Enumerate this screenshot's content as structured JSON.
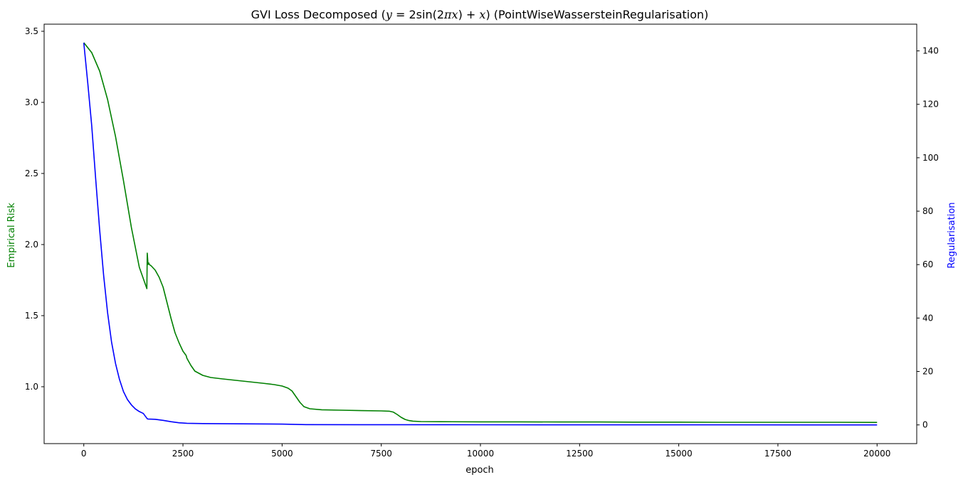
{
  "chart_data": {
    "type": "line",
    "title": "GVI Loss Decomposed ($y=2\\sin(2\\pi x)+x$) (PointWiseWassersteinRegularisation)",
    "title_rendered": {
      "prefix": "GVI Loss Decomposed (",
      "math_y": "y",
      "math_eq": " = 2sin(2",
      "math_pi": "π",
      "math_x1": "x",
      "math_close": ") + ",
      "math_x2": "x",
      "suffix": ") (PointWiseWassersteinRegularisation)"
    },
    "xlabel": "epoch",
    "ylabel_left": "Empirical Risk",
    "ylabel_right": "Regularisation",
    "xlim": [
      -1000,
      21000
    ],
    "ylim_left": [
      0.6,
      3.55
    ],
    "ylim_right": [
      -7,
      150
    ],
    "x_ticks": [
      0,
      2500,
      5000,
      7500,
      10000,
      12500,
      15000,
      17500,
      20000
    ],
    "x_tick_labels": [
      "0",
      "2500",
      "5000",
      "7500",
      "10000",
      "12500",
      "15000",
      "17500",
      "20000"
    ],
    "y_left_ticks": [
      1.0,
      1.5,
      2.0,
      2.5,
      3.0,
      3.5
    ],
    "y_left_tick_labels": [
      "1.0",
      "1.5",
      "2.0",
      "2.5",
      "3.0",
      "3.5"
    ],
    "y_right_ticks": [
      0,
      20,
      40,
      60,
      80,
      100,
      120,
      140
    ],
    "y_right_tick_labels": [
      "0",
      "20",
      "40",
      "60",
      "80",
      "100",
      "120",
      "140"
    ],
    "grid": false,
    "legend": "none",
    "series": [
      {
        "axis": "left",
        "color": "#008000",
        "x": [
          0,
          200,
          400,
          600,
          800,
          1000,
          1200,
          1400,
          1590,
          1600,
          1620,
          1640,
          1650,
          1700,
          1800,
          1900,
          2000,
          2100,
          2200,
          2300,
          2400,
          2500,
          2580,
          2600,
          2700,
          2800,
          3000,
          3200,
          3500,
          4000,
          4500,
          4800,
          5000,
          5150,
          5250,
          5350,
          5450,
          5550,
          5700,
          6000,
          6500,
          7000,
          7500,
          7700,
          7800,
          7900,
          8000,
          8100,
          8200,
          8300,
          8500,
          9000,
          10000,
          11000,
          12000,
          13000,
          14000,
          15000,
          16000,
          17000,
          18000,
          19000,
          20000
        ],
        "values": [
          3.42,
          3.35,
          3.22,
          3.02,
          2.76,
          2.45,
          2.12,
          1.84,
          1.69,
          1.94,
          1.86,
          1.87,
          1.86,
          1.85,
          1.82,
          1.77,
          1.7,
          1.59,
          1.48,
          1.38,
          1.31,
          1.25,
          1.22,
          1.2,
          1.15,
          1.11,
          1.08,
          1.065,
          1.055,
          1.04,
          1.025,
          1.015,
          1.005,
          0.99,
          0.97,
          0.93,
          0.89,
          0.86,
          0.845,
          0.838,
          0.835,
          0.832,
          0.83,
          0.828,
          0.822,
          0.805,
          0.785,
          0.77,
          0.762,
          0.758,
          0.755,
          0.754,
          0.753,
          0.753,
          0.752,
          0.752,
          0.751,
          0.751,
          0.75,
          0.75,
          0.75,
          0.75,
          0.749
        ]
      },
      {
        "axis": "right",
        "color": "#0000ff",
        "x": [
          0,
          100,
          200,
          300,
          400,
          500,
          600,
          700,
          800,
          900,
          1000,
          1100,
          1200,
          1300,
          1400,
          1500,
          1600,
          1620,
          1800,
          2000,
          2200,
          2400,
          2600,
          3000,
          4000,
          5000,
          5600,
          7000,
          10000,
          15000,
          20000
        ],
        "values": [
          143,
          128,
          112,
          92,
          73,
          56,
          42,
          31,
          23,
          17,
          12.5,
          9.5,
          7.5,
          6,
          5,
          4.3,
          2.3,
          2.2,
          2.1,
          1.7,
          1.2,
          0.8,
          0.6,
          0.5,
          0.4,
          0.3,
          0.1,
          0.08,
          0.05,
          0.03,
          0.0
        ]
      }
    ]
  }
}
